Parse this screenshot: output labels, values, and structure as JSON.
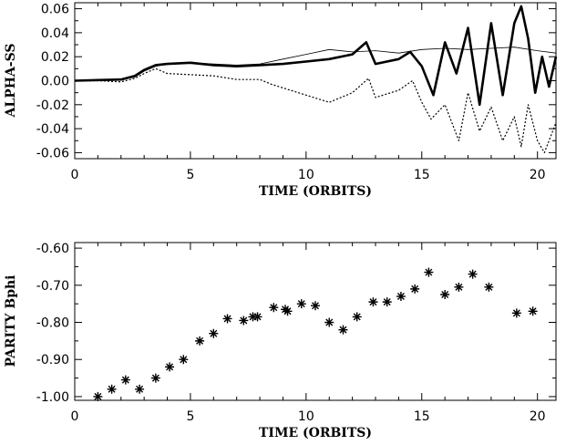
{
  "chart_data": [
    {
      "type": "line",
      "xlabel": "TIME (ORBITS)",
      "ylabel": "ALPHA-SS",
      "xlim": [
        0,
        20.8
      ],
      "ylim": [
        -0.065,
        0.065
      ],
      "xticks": [
        0,
        5,
        10,
        15,
        20
      ],
      "xtick_labels": [
        "0",
        "5",
        "10",
        "15",
        "20"
      ],
      "yticks": [
        -0.06,
        -0.04,
        -0.02,
        0.0,
        0.02,
        0.04,
        0.06
      ],
      "ytick_labels": [
        "-0.06",
        "-0.04",
        "-0.02",
        "0.00",
        "0.02",
        "0.04",
        "0.06"
      ],
      "grid": false,
      "series": [
        {
          "style": "thin-solid",
          "x": [
            0,
            1,
            2,
            2.6,
            3,
            3.5,
            4,
            5,
            6,
            7,
            8,
            9,
            10,
            11,
            12,
            13,
            14,
            15,
            16,
            17,
            18,
            19,
            20,
            20.8
          ],
          "y": [
            0,
            0.0005,
            0.001,
            0.003,
            0.008,
            0.012,
            0.014,
            0.015,
            0.014,
            0.013,
            0.014,
            0.018,
            0.022,
            0.026,
            0.024,
            0.025,
            0.023,
            0.026,
            0.027,
            0.026,
            0.027,
            0.028,
            0.025,
            0.023
          ]
        },
        {
          "style": "thick-solid",
          "x": [
            0,
            1,
            2,
            2.6,
            3,
            3.5,
            4,
            5,
            6,
            7,
            8,
            9,
            10,
            11,
            12,
            12.6,
            13,
            14,
            14.5,
            15,
            15.5,
            16,
            16.5,
            17,
            17.5,
            18,
            18.5,
            19,
            19.3,
            19.6,
            19.9,
            20.2,
            20.5,
            20.8
          ],
          "y": [
            0,
            0.0005,
            0.001,
            0.004,
            0.009,
            0.013,
            0.014,
            0.015,
            0.013,
            0.012,
            0.013,
            0.014,
            0.016,
            0.018,
            0.022,
            0.032,
            0.014,
            0.018,
            0.024,
            0.012,
            -0.012,
            0.032,
            0.006,
            0.044,
            -0.02,
            0.048,
            -0.012,
            0.048,
            0.062,
            0.035,
            -0.01,
            0.02,
            -0.005,
            0.02
          ]
        },
        {
          "style": "dotted",
          "x": [
            0,
            1,
            2,
            2.6,
            3,
            3.5,
            4,
            5,
            6,
            7,
            8,
            8.5,
            9,
            10,
            11,
            12,
            12.7,
            13,
            14,
            14.6,
            15,
            15.4,
            16,
            16.6,
            17,
            17.5,
            18,
            18.5,
            19,
            19.3,
            19.6,
            20,
            20.3,
            20.8
          ],
          "y": [
            0,
            0,
            -0.001,
            0.002,
            0.006,
            0.01,
            0.006,
            0.005,
            0.004,
            0.001,
            0.001,
            -0.003,
            -0.006,
            -0.012,
            -0.018,
            -0.01,
            0.002,
            -0.014,
            -0.008,
            0.0,
            -0.018,
            -0.032,
            -0.02,
            -0.05,
            -0.01,
            -0.042,
            -0.022,
            -0.05,
            -0.03,
            -0.055,
            -0.02,
            -0.05,
            -0.06,
            -0.035
          ]
        }
      ]
    },
    {
      "type": "scatter",
      "xlabel": "TIME (ORBITS)",
      "ylabel": "PARITY Bphi",
      "xlim": [
        0,
        20.8
      ],
      "ylim": [
        -1.01,
        -0.585
      ],
      "xticks": [
        0,
        5,
        10,
        15,
        20
      ],
      "xtick_labels": [
        "0",
        "5",
        "10",
        "15",
        "20"
      ],
      "yticks": [
        -1.0,
        -0.9,
        -0.8,
        -0.7,
        -0.6
      ],
      "ytick_labels": [
        "-1.00",
        "-0.90",
        "-0.80",
        "-0.70",
        "-0.60"
      ],
      "grid": false,
      "marker": "asterisk",
      "x": [
        1.0,
        1.6,
        2.2,
        2.8,
        3.5,
        4.1,
        4.7,
        5.4,
        6.0,
        6.6,
        7.3,
        7.7,
        7.9,
        8.6,
        9.1,
        9.2,
        9.8,
        10.4,
        11.0,
        11.6,
        12.2,
        12.9,
        13.5,
        14.1,
        14.7,
        15.3,
        16.0,
        16.6,
        17.2,
        17.9,
        19.1,
        19.8
      ],
      "y": [
        -1.0,
        -0.98,
        -0.955,
        -0.98,
        -0.95,
        -0.92,
        -0.9,
        -0.85,
        -0.83,
        -0.79,
        -0.795,
        -0.785,
        -0.785,
        -0.76,
        -0.765,
        -0.77,
        -0.75,
        -0.755,
        -0.8,
        -0.82,
        -0.785,
        -0.745,
        -0.745,
        -0.73,
        -0.71,
        -0.665,
        -0.725,
        -0.705,
        -0.67,
        -0.705,
        -0.775,
        -0.77
      ]
    }
  ]
}
